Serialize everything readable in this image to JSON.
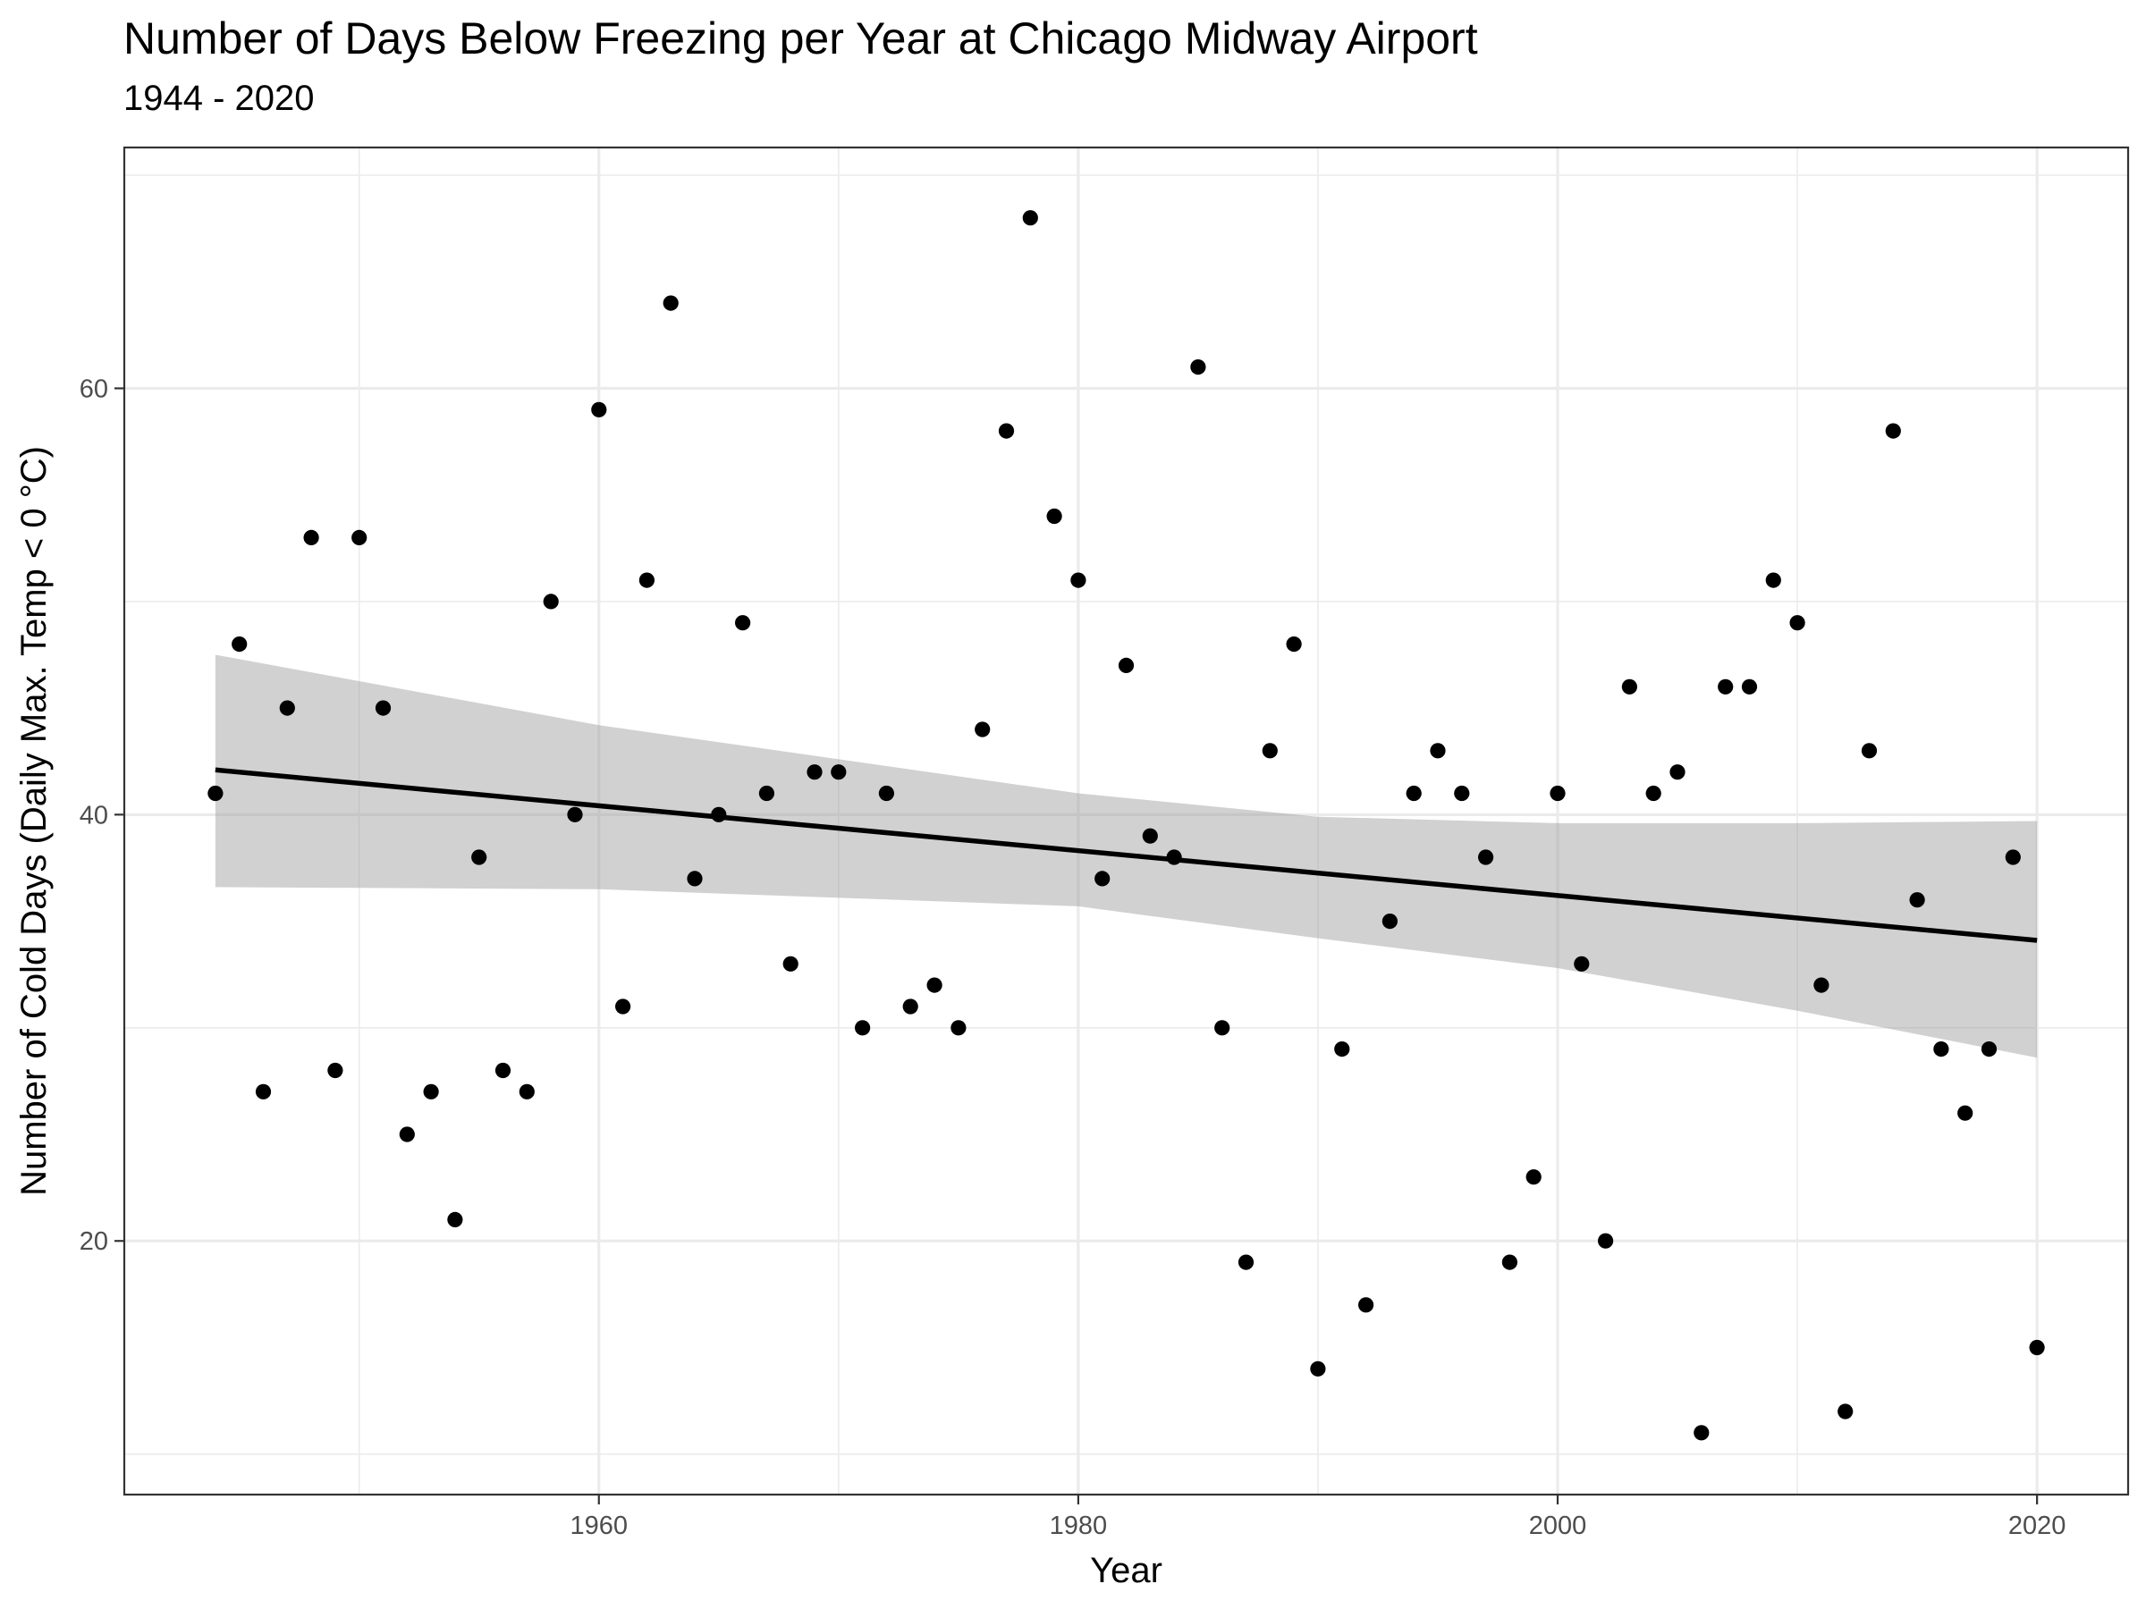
{
  "chart_data": {
    "type": "scatter",
    "title": "Number of Days Below Freezing per Year at Chicago Midway Airport",
    "subtitle": "1944 - 2020",
    "xlabel": "Year",
    "ylabel": "Number of Cold Days (Daily Max. Temp < 0 °C)",
    "xlim": [
      1940.2,
      2023.8
    ],
    "ylim": [
      8.1,
      71.3
    ],
    "x_ticks": [
      1960,
      1980,
      2000,
      2020
    ],
    "y_ticks": [
      20,
      40,
      60
    ],
    "x_minor": [
      1950,
      1970,
      1990,
      2010
    ],
    "y_minor": [
      10,
      30,
      50,
      70
    ],
    "grid": true,
    "colors": {
      "points": "#000000",
      "trend": "#000000",
      "band": "#999999",
      "grid": "#ebebeb",
      "border": "#333333"
    },
    "x": [
      1944,
      1945,
      1946,
      1947,
      1948,
      1949,
      1950,
      1951,
      1952,
      1953,
      1954,
      1955,
      1956,
      1957,
      1958,
      1959,
      1960,
      1961,
      1962,
      1963,
      1964,
      1965,
      1966,
      1967,
      1968,
      1969,
      1970,
      1971,
      1972,
      1973,
      1974,
      1975,
      1976,
      1977,
      1978,
      1979,
      1980,
      1981,
      1982,
      1983,
      1984,
      1985,
      1986,
      1987,
      1988,
      1989,
      1990,
      1991,
      1992,
      1993,
      1994,
      1995,
      1996,
      1997,
      1998,
      1999,
      2000,
      2001,
      2002,
      2003,
      2004,
      2005,
      2006,
      2007,
      2008,
      2009,
      2010,
      2011,
      2012,
      2013,
      2014,
      2015,
      2016,
      2017,
      2018,
      2019,
      2020
    ],
    "y": [
      41,
      48,
      27,
      45,
      53,
      28,
      53,
      45,
      25,
      27,
      21,
      38,
      28,
      27,
      50,
      40,
      59,
      31,
      51,
      64,
      37,
      40,
      49,
      41,
      33,
      42,
      42,
      30,
      41,
      31,
      32,
      30,
      44,
      58,
      68,
      54,
      51,
      37,
      47,
      39,
      38,
      61,
      30,
      19,
      43,
      48,
      14,
      29,
      17,
      35,
      41,
      43,
      41,
      38,
      19,
      23,
      41,
      33,
      20,
      46,
      41,
      42,
      11,
      46,
      46,
      51,
      49,
      32,
      12,
      43,
      58,
      36,
      29,
      26,
      29,
      38,
      15
    ],
    "trend": {
      "x": [
        1944,
        2020
      ],
      "y": [
        42.1,
        34.1
      ]
    },
    "confidence_band": {
      "x": [
        1944,
        1960,
        1980,
        1990,
        2000,
        2010,
        2020
      ],
      "upper": [
        47.5,
        44.2,
        41.0,
        39.9,
        39.6,
        39.6,
        39.7
      ],
      "lower": [
        36.6,
        36.5,
        35.7,
        34.2,
        32.8,
        30.8,
        28.6
      ]
    }
  }
}
